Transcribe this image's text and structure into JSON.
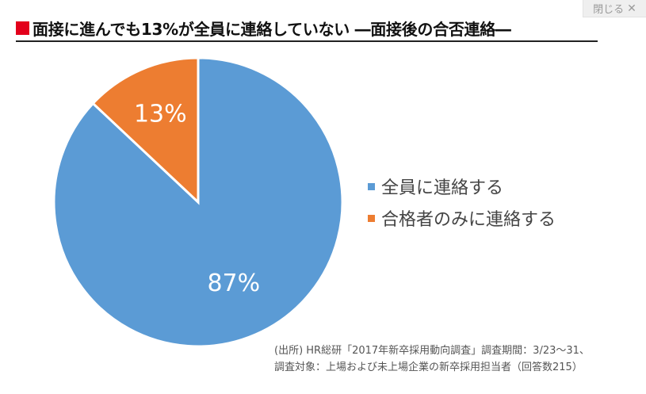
{
  "close_button": {
    "label": "閉じる",
    "icon": "close-icon"
  },
  "title": {
    "text": "面接に進んでも13%が全員に連絡していない ―面接後の合否連絡―",
    "marker_color": "#e3001b"
  },
  "chart_data": {
    "type": "pie",
    "title": "面接に進んでも13%が全員に連絡していない ―面接後の合否連絡―",
    "slices": [
      {
        "name": "全員に連絡する",
        "value": 87,
        "label": "87%",
        "color": "#5b9bd5"
      },
      {
        "name": "合格者のみに連絡する",
        "value": 13,
        "label": "13%",
        "color": "#ed7d31"
      }
    ],
    "start_angle_deg": 0,
    "direction": "clockwise",
    "legend_position": "right",
    "slice_border_color": "#ffffff"
  },
  "source": {
    "line1": "(出所) HR総研「2017年新卒採用動向調査」調査期間：3/23〜31、",
    "line2": "調査対象：上場および未上場企業の新卒採用担当者（回答数215）"
  }
}
